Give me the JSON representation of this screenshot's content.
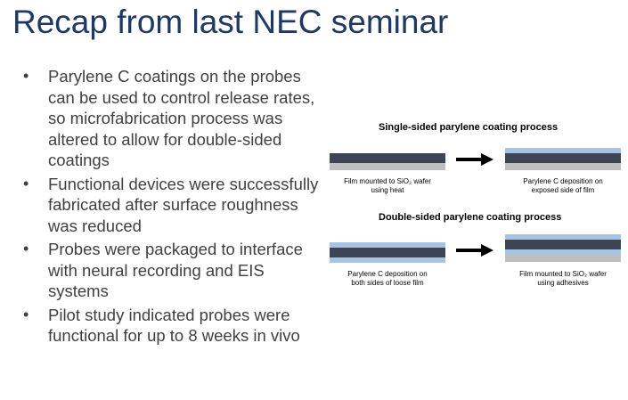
{
  "slide": {
    "title": "Recap from last NEC seminar",
    "bullets": [
      "Parylene C coatings on the probes can be used to control release rates, so microfabrication process was altered to allow for double-sided coatings",
      "Functional devices were successfully fabricated after surface roughness was reduced",
      "Probes were packaged to interface with neural recording and EIS systems",
      "Pilot study indicated probes were functional for up to 8 weeks in vivo"
    ],
    "bullet_symbol": "•"
  },
  "figure": {
    "single_heading": "Single-sided parylene coating process",
    "double_heading": "Double-sided parylene coating process",
    "single_step1_line1": "Film mounted to SiO₂ wafer",
    "single_step1_line2": "using heat",
    "single_step2_line1": "Parylene C deposition on",
    "single_step2_line2": "exposed side of film",
    "double_step1_line1": "Parylene C deposition on",
    "double_step1_line2": "both sides of loose film",
    "double_step2_line1": "Film mounted to SiO₂ wafer",
    "double_step2_line2": "using adhesives",
    "colors": {
      "parylene": "#a8c4e0",
      "film": "#3c4456",
      "wafer": "#bfbfbf"
    }
  }
}
